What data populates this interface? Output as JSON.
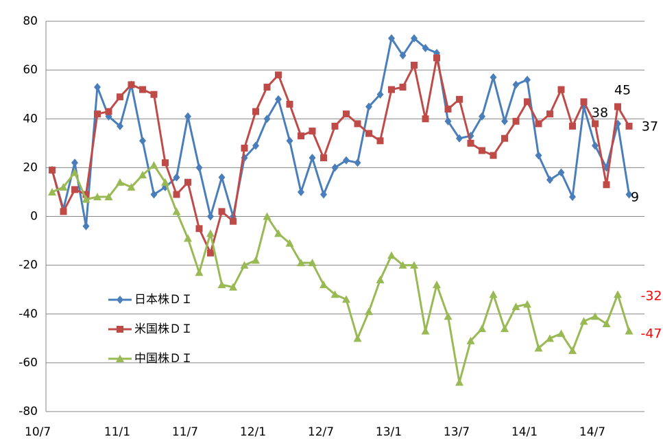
{
  "chart_data": {
    "type": "line",
    "categories": [
      "10/7",
      null,
      null,
      null,
      null,
      null,
      "11/1",
      null,
      null,
      null,
      null,
      null,
      "11/7",
      null,
      null,
      null,
      null,
      null,
      "12/1",
      null,
      null,
      null,
      null,
      null,
      "12/7",
      null,
      null,
      null,
      null,
      null,
      "13/1",
      null,
      null,
      null,
      null,
      null,
      "13/7",
      null,
      null,
      null,
      null,
      null,
      "14/1",
      null,
      null,
      null,
      null,
      null,
      "14/7",
      null,
      null,
      null
    ],
    "series": [
      {
        "name": "日本株ＤＩ",
        "color": "#4a7ebb",
        "marker": "diamond",
        "values": [
          19,
          3,
          22,
          -4,
          53,
          41,
          37,
          54,
          31,
          9,
          12,
          16,
          41,
          20,
          0,
          16,
          0,
          24,
          29,
          40,
          48,
          31,
          10,
          24,
          9,
          20,
          23,
          22,
          45,
          50,
          73,
          66,
          73,
          69,
          67,
          39,
          32,
          33,
          41,
          57,
          39,
          54,
          56,
          25,
          15,
          18,
          8,
          45,
          29,
          20,
          38,
          9
        ]
      },
      {
        "name": "米国株ＤＩ",
        "color": "#be4b48",
        "marker": "square",
        "values": [
          19,
          2,
          11,
          9,
          42,
          43,
          49,
          54,
          52,
          50,
          22,
          9,
          14,
          -5,
          -15,
          2,
          -2,
          28,
          43,
          53,
          58,
          46,
          33,
          35,
          24,
          37,
          42,
          38,
          34,
          31,
          52,
          53,
          62,
          40,
          65,
          44,
          48,
          30,
          27,
          25,
          32,
          39,
          47,
          38,
          42,
          52,
          37,
          47,
          38,
          13,
          45,
          37
        ]
      },
      {
        "name": "中国株ＤＩ",
        "color": "#98b954",
        "marker": "triangle",
        "values": [
          10,
          12,
          18,
          7,
          8,
          8,
          14,
          12,
          17,
          21,
          14,
          2,
          -9,
          -23,
          -7,
          -28,
          -29,
          -20,
          -18,
          0,
          -7,
          -11,
          -19,
          -19,
          -28,
          -32,
          -34,
          -50,
          -39,
          -26,
          -16,
          -20,
          -20,
          -47,
          -28,
          -41,
          -68,
          -51,
          -46,
          -32,
          -46,
          -37,
          -36,
          -54,
          -50,
          -48,
          -55,
          -43,
          -41,
          -44,
          -32,
          -47
        ]
      }
    ],
    "annotations": [
      {
        "text": "45",
        "color": "#000000"
      },
      {
        "text": "38",
        "color": "#000000"
      },
      {
        "text": "37",
        "color": "#000000"
      },
      {
        "text": "9",
        "color": "#000000"
      },
      {
        "text": "-32",
        "color": "#ff0000"
      },
      {
        "text": "-47",
        "color": "#ff0000"
      }
    ],
    "ylim": [
      -80,
      80
    ],
    "yticks": [
      -80,
      -60,
      -40,
      -20,
      0,
      20,
      40,
      60,
      80
    ],
    "grid": true,
    "legend": "inside-left"
  }
}
